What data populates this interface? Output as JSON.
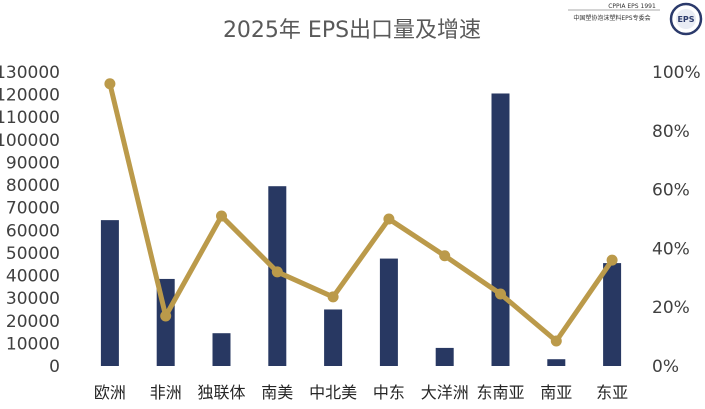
{
  "logo": {
    "line1": "CPPIA EPS 1991",
    "line2": "中国塑协泡沫塑料EPS专委会",
    "badge": "EPS"
  },
  "chart_data": {
    "type": "bar",
    "title": "2025年 EPS出口量及增速",
    "categories": [
      "欧洲",
      "非洲",
      "独联体",
      "南美",
      "中北美",
      "中东",
      "大洋洲",
      "东南亚",
      "南亚",
      "东亚"
    ],
    "series": [
      {
        "type": "bar",
        "axis": "left",
        "values": [
          64500,
          38500,
          14500,
          79500,
          25000,
          47500,
          8000,
          120500,
          3000,
          45500
        ]
      },
      {
        "type": "line",
        "axis": "right",
        "values": [
          0.96,
          0.17,
          0.51,
          0.32,
          0.235,
          0.5,
          0.375,
          0.245,
          0.085,
          0.36
        ]
      }
    ],
    "y_left": {
      "min": 0,
      "max": 130000,
      "step": 10000
    },
    "y_right": {
      "min": 0,
      "max": 1.0,
      "step": 0.2
    },
    "y_right_ticks": [
      "0%",
      "20%",
      "40%",
      "60%",
      "80%",
      "100%"
    ],
    "grid": false,
    "colors": {
      "bar": "#283862",
      "line": "#BB9A4A"
    }
  }
}
